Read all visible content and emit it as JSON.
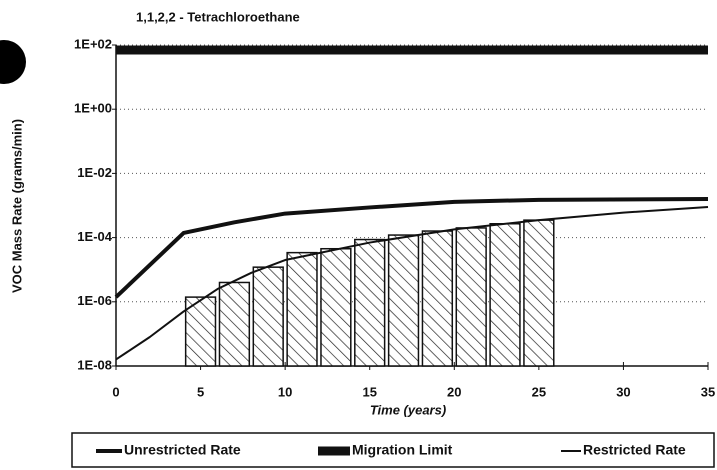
{
  "chart_data": {
    "type": "line",
    "title": "1,1,2,2 - Tetrachloroethane",
    "xlabel": "Time (years)",
    "ylabel": "VOC Mass Rate (grams/min)",
    "ylog": true,
    "grid": true,
    "legend": "bottom",
    "xlim": [
      0,
      35
    ],
    "xticks": [
      0,
      5,
      10,
      15,
      20,
      25,
      30,
      35
    ],
    "ylim": [
      1e-08,
      100
    ],
    "yticks": [
      {
        "value": 1e-08,
        "label": "1E-08"
      },
      {
        "value": 1e-06,
        "label": "1E-06"
      },
      {
        "value": 0.0001,
        "label": "1E-04"
      },
      {
        "value": 0.01,
        "label": "1E-02"
      },
      {
        "value": 1,
        "label": "1E+00"
      },
      {
        "value": 100,
        "label": "1E+02"
      }
    ],
    "series": [
      {
        "name": "Unrestricted Rate",
        "color": "#111111",
        "x": [
          0,
          4,
          7,
          10,
          15,
          20,
          25,
          35
        ],
        "values": [
          1.4e-06,
          0.00014,
          0.0003,
          0.00056,
          0.00087,
          0.0013,
          0.0015,
          0.0016
        ]
      },
      {
        "name": "Migration Limit",
        "color": "#111111",
        "x": [
          0,
          35
        ],
        "values": [
          70,
          70
        ]
      },
      {
        "name": "Restricted Rate",
        "color": "#111111",
        "x": [
          0,
          2,
          4,
          6,
          8,
          10,
          15,
          20,
          25,
          30,
          35
        ],
        "values": [
          1.6e-08,
          8e-08,
          5e-07,
          2.5e-06,
          8e-06,
          2e-05,
          7e-05,
          0.00018,
          0.00035,
          0.0006,
          0.0009
        ]
      }
    ],
    "bars": {
      "bins": [
        4,
        6,
        8,
        10,
        12,
        14,
        16,
        18,
        20,
        22,
        24,
        26
      ],
      "values": [
        1.4e-06,
        4e-06,
        1.2e-05,
        3.4e-05,
        4.5e-05,
        8.7e-05,
        0.00012,
        0.00016,
        0.0002,
        0.00027,
        0.00035
      ]
    }
  }
}
